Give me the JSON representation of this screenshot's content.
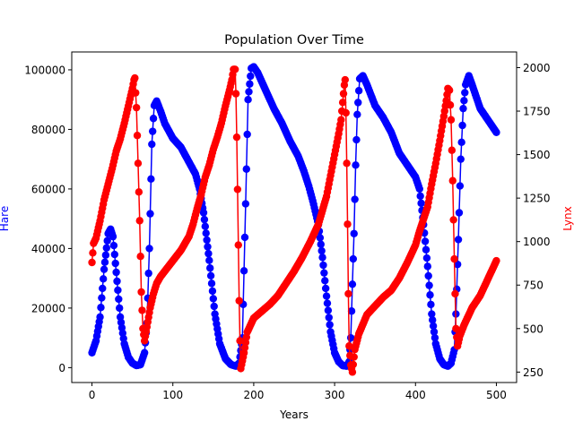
{
  "chart_data": {
    "type": "line",
    "title": "Population Over Time",
    "xlabel": "Years",
    "ylabel_left": "Hare",
    "ylabel_right": "Lynx",
    "xlim": [
      -25,
      525
    ],
    "ylim_left": [
      -5000,
      106000
    ],
    "ylim_right": [
      190,
      2090
    ],
    "x_ticks": [
      0,
      100,
      200,
      300,
      400,
      500
    ],
    "y_ticks_left": [
      0,
      20000,
      40000,
      60000,
      80000,
      100000
    ],
    "y_ticks_right": [
      250,
      500,
      750,
      1000,
      1250,
      1500,
      1750,
      2000
    ],
    "grid": false,
    "colors": {
      "hare": "#0000ff",
      "lynx": "#ff0000",
      "axis": "#000000"
    },
    "series": [
      {
        "name": "Hare",
        "axis": "left",
        "color": "#0000ff",
        "keypoints": [
          [
            0,
            5000
          ],
          [
            5,
            9000
          ],
          [
            10,
            17000
          ],
          [
            15,
            33000
          ],
          [
            20,
            45000
          ],
          [
            23,
            46500
          ],
          [
            26,
            44000
          ],
          [
            30,
            32000
          ],
          [
            35,
            17000
          ],
          [
            40,
            8000
          ],
          [
            45,
            3500
          ],
          [
            50,
            1500
          ],
          [
            55,
            700
          ],
          [
            60,
            1000
          ],
          [
            65,
            5000
          ],
          [
            68,
            15000
          ],
          [
            71,
            40000
          ],
          [
            74,
            75000
          ],
          [
            77,
            88000
          ],
          [
            80,
            89500
          ],
          [
            85,
            86000
          ],
          [
            90,
            82000
          ],
          [
            100,
            77000
          ],
          [
            110,
            74000
          ],
          [
            120,
            69000
          ],
          [
            128,
            65000
          ],
          [
            133,
            60000
          ],
          [
            138,
            52000
          ],
          [
            145,
            36000
          ],
          [
            152,
            18000
          ],
          [
            158,
            8000
          ],
          [
            165,
            3000
          ],
          [
            172,
            1000
          ],
          [
            178,
            500
          ],
          [
            182,
            1500
          ],
          [
            186,
            10000
          ],
          [
            190,
            55000
          ],
          [
            193,
            90000
          ],
          [
            197,
            100500
          ],
          [
            200,
            101000
          ],
          [
            205,
            99000
          ],
          [
            215,
            93000
          ],
          [
            225,
            87000
          ],
          [
            235,
            82000
          ],
          [
            245,
            76000
          ],
          [
            255,
            71000
          ],
          [
            262,
            66000
          ],
          [
            268,
            61000
          ],
          [
            273,
            56000
          ],
          [
            280,
            48000
          ],
          [
            285,
            37000
          ],
          [
            290,
            24000
          ],
          [
            295,
            12000
          ],
          [
            300,
            5000
          ],
          [
            305,
            2000
          ],
          [
            310,
            700
          ],
          [
            315,
            500
          ],
          [
            318,
            2000
          ],
          [
            320,
            10000
          ],
          [
            322,
            28000
          ],
          [
            324,
            45000
          ],
          [
            326,
            68000
          ],
          [
            328,
            85000
          ],
          [
            331,
            97000
          ],
          [
            335,
            98000
          ],
          [
            340,
            95000
          ],
          [
            350,
            88000
          ],
          [
            360,
            84000
          ],
          [
            370,
            79000
          ],
          [
            380,
            72000
          ],
          [
            390,
            68000
          ],
          [
            400,
            64000
          ],
          [
            405,
            60000
          ],
          [
            410,
            48000
          ],
          [
            415,
            34000
          ],
          [
            420,
            18000
          ],
          [
            425,
            8000
          ],
          [
            430,
            3000
          ],
          [
            435,
            1000
          ],
          [
            440,
            500
          ],
          [
            444,
            1500
          ],
          [
            448,
            6000
          ],
          [
            450,
            18000
          ],
          [
            453,
            43000
          ],
          [
            456,
            70000
          ],
          [
            459,
            87000
          ],
          [
            462,
            95000
          ],
          [
            466,
            98000
          ],
          [
            470,
            95000
          ],
          [
            480,
            87000
          ],
          [
            490,
            83000
          ],
          [
            500,
            79000
          ]
        ]
      },
      {
        "name": "Lynx",
        "axis": "right",
        "color": "#ff0000",
        "keypoints": [
          [
            0,
            880
          ],
          [
            2,
            990
          ],
          [
            5,
            1020
          ],
          [
            10,
            1120
          ],
          [
            15,
            1240
          ],
          [
            20,
            1330
          ],
          [
            25,
            1420
          ],
          [
            30,
            1520
          ],
          [
            35,
            1590
          ],
          [
            40,
            1680
          ],
          [
            45,
            1780
          ],
          [
            50,
            1880
          ],
          [
            52,
            1930
          ],
          [
            53,
            1940
          ],
          [
            55,
            1770
          ],
          [
            57,
            1450
          ],
          [
            59,
            1120
          ],
          [
            61,
            710
          ],
          [
            63,
            500
          ],
          [
            65,
            430
          ],
          [
            68,
            510
          ],
          [
            72,
            620
          ],
          [
            76,
            700
          ],
          [
            80,
            760
          ],
          [
            85,
            800
          ],
          [
            90,
            830
          ],
          [
            100,
            890
          ],
          [
            110,
            950
          ],
          [
            120,
            1030
          ],
          [
            125,
            1100
          ],
          [
            130,
            1190
          ],
          [
            135,
            1270
          ],
          [
            140,
            1370
          ],
          [
            145,
            1440
          ],
          [
            150,
            1530
          ],
          [
            155,
            1600
          ],
          [
            160,
            1680
          ],
          [
            165,
            1780
          ],
          [
            170,
            1870
          ],
          [
            173,
            1930
          ],
          [
            175,
            1990
          ],
          [
            177,
            1990
          ],
          [
            178,
            1850
          ],
          [
            179,
            1600
          ],
          [
            180,
            1300
          ],
          [
            181,
            980
          ],
          [
            182,
            660
          ],
          [
            183,
            430
          ],
          [
            184,
            270
          ],
          [
            188,
            360
          ],
          [
            192,
            480
          ],
          [
            200,
            560
          ],
          [
            210,
            600
          ],
          [
            220,
            640
          ],
          [
            230,
            690
          ],
          [
            240,
            760
          ],
          [
            250,
            830
          ],
          [
            260,
            910
          ],
          [
            270,
            1000
          ],
          [
            280,
            1100
          ],
          [
            285,
            1180
          ],
          [
            290,
            1260
          ],
          [
            295,
            1380
          ],
          [
            300,
            1500
          ],
          [
            305,
            1620
          ],
          [
            308,
            1700
          ],
          [
            310,
            1800
          ],
          [
            312,
            1900
          ],
          [
            313,
            1930
          ],
          [
            314,
            1740
          ],
          [
            315,
            1450
          ],
          [
            316,
            1100
          ],
          [
            317,
            700
          ],
          [
            318,
            400
          ],
          [
            320,
            290
          ],
          [
            322,
            250
          ],
          [
            325,
            380
          ],
          [
            330,
            470
          ],
          [
            340,
            580
          ],
          [
            350,
            630
          ],
          [
            360,
            680
          ],
          [
            370,
            720
          ],
          [
            380,
            790
          ],
          [
            390,
            880
          ],
          [
            400,
            980
          ],
          [
            405,
            1060
          ],
          [
            410,
            1130
          ],
          [
            415,
            1200
          ],
          [
            420,
            1330
          ],
          [
            425,
            1450
          ],
          [
            430,
            1580
          ],
          [
            435,
            1720
          ],
          [
            438,
            1810
          ],
          [
            440,
            1880
          ],
          [
            442,
            1870
          ],
          [
            444,
            1700
          ],
          [
            446,
            1350
          ],
          [
            448,
            900
          ],
          [
            450,
            500
          ],
          [
            452,
            400
          ],
          [
            455,
            460
          ],
          [
            460,
            520
          ],
          [
            470,
            620
          ],
          [
            480,
            690
          ],
          [
            490,
            790
          ],
          [
            500,
            890
          ]
        ]
      }
    ]
  }
}
